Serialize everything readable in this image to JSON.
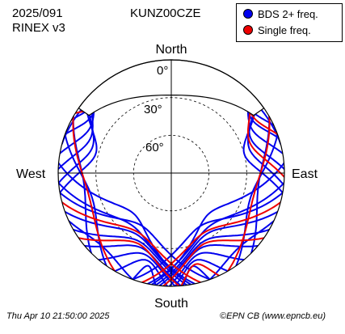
{
  "header": {
    "date_code": "2025/091",
    "format": "RINEX v3",
    "station": "KUNZ00CZE"
  },
  "footer": {
    "timestamp": "Thu Apr 10 21:50:00 2025",
    "credit": "©EPN CB (www.epncb.eu)"
  },
  "legend": {
    "items": [
      {
        "label": "BDS 2+ freq.",
        "color": "#0000ee"
      },
      {
        "label": "Single freq.",
        "color": "#ee0000"
      }
    ]
  },
  "chart_data": {
    "type": "polar-skyplot",
    "title": "KUNZ00CZE",
    "directions": {
      "north": "North",
      "south": "South",
      "east": "East",
      "west": "West"
    },
    "elevation_rings": [
      {
        "value": 0,
        "label": "0°"
      },
      {
        "value": 30,
        "label": "30°"
      },
      {
        "value": 60,
        "label": "60°"
      }
    ],
    "elevation_range": [
      0,
      90
    ],
    "no_data_cap": {
      "min_elevation": 10,
      "azimuth_range": [
        -55,
        55
      ]
    },
    "series": [
      {
        "name": "BDS 2+ freq.",
        "color": "#0000ee",
        "tracks": [
          {
            "az_start": -62,
            "az_end": -35,
            "max_el": 8
          },
          {
            "az_start": -70,
            "az_end": -40,
            "max_el": 12
          },
          {
            "az_start": -80,
            "az_end": -42,
            "max_el": 16
          },
          {
            "az_start": -88,
            "az_end": -45,
            "max_el": 20
          },
          {
            "az_start": -95,
            "az_end": -48,
            "max_el": 24
          },
          {
            "az_start": -100,
            "az_end": -50,
            "max_el": 28
          },
          {
            "az_start": 38,
            "az_end": 65,
            "max_el": 9
          },
          {
            "az_start": 40,
            "az_end": 72,
            "max_el": 13
          },
          {
            "az_start": 42,
            "az_end": 80,
            "max_el": 17
          },
          {
            "az_start": 45,
            "az_end": 88,
            "max_el": 21
          },
          {
            "az_start": 48,
            "az_end": 96,
            "max_el": 25
          },
          {
            "az_start": 50,
            "az_end": 100,
            "max_el": 30
          },
          {
            "az_start": -110,
            "az_end": 170,
            "max_el": 34
          },
          {
            "az_start": -120,
            "az_end": 172,
            "max_el": 30
          },
          {
            "az_start": -130,
            "az_end": 175,
            "max_el": 26
          },
          {
            "az_start": -140,
            "az_end": 178,
            "max_el": 22
          },
          {
            "az_start": -150,
            "az_end": -178,
            "max_el": 18
          },
          {
            "az_start": -160,
            "az_end": -172,
            "max_el": 14
          },
          {
            "az_start": -95,
            "az_end": 168,
            "max_el": 38
          },
          {
            "az_start": -100,
            "az_end": 160,
            "max_el": 42
          },
          {
            "az_start": 110,
            "az_end": -172,
            "max_el": 34
          },
          {
            "az_start": 120,
            "az_end": -174,
            "max_el": 30
          },
          {
            "az_start": 130,
            "az_end": -176,
            "max_el": 26
          },
          {
            "az_start": 140,
            "az_end": -179,
            "max_el": 22
          },
          {
            "az_start": 150,
            "az_end": 178,
            "max_el": 18
          },
          {
            "az_start": 160,
            "az_end": 174,
            "max_el": 14
          },
          {
            "az_start": 95,
            "az_end": -168,
            "max_el": 38
          },
          {
            "az_start": 100,
            "az_end": -160,
            "max_el": 42
          },
          {
            "az_start": -135,
            "az_end": -60,
            "max_el": 20
          },
          {
            "az_start": -145,
            "az_end": -70,
            "max_el": 24
          },
          {
            "az_start": 135,
            "az_end": 60,
            "max_el": 20
          },
          {
            "az_start": 145,
            "az_end": 70,
            "max_el": 24
          },
          {
            "az_start": -75,
            "az_end": 75,
            "max_el": 6
          },
          {
            "az_start": -85,
            "az_end": 170,
            "max_el": 46
          },
          {
            "az_start": 85,
            "az_end": -170,
            "max_el": 46
          },
          {
            "az_start": -115,
            "az_end": -160,
            "max_el": 10
          },
          {
            "az_start": 115,
            "az_end": 160,
            "max_el": 10
          }
        ]
      },
      {
        "name": "Single freq.",
        "color": "#ee0000",
        "tracks": [
          {
            "az_start": -58,
            "az_end": -38,
            "max_el": 10
          },
          {
            "az_start": -105,
            "az_end": 165,
            "max_el": 36
          },
          {
            "az_start": -125,
            "az_end": 176,
            "max_el": 28
          },
          {
            "az_start": -150,
            "az_end": -60,
            "max_el": 22
          },
          {
            "az_start": 40,
            "az_end": 70,
            "max_el": 11
          },
          {
            "az_start": 45,
            "az_end": 92,
            "max_el": 23
          },
          {
            "az_start": 105,
            "az_end": -165,
            "max_el": 36
          },
          {
            "az_start": 125,
            "az_end": -176,
            "max_el": 28
          },
          {
            "az_start": 150,
            "az_end": 60,
            "max_el": 22
          },
          {
            "az_start": 155,
            "az_end": 175,
            "max_el": 15
          }
        ]
      }
    ]
  }
}
